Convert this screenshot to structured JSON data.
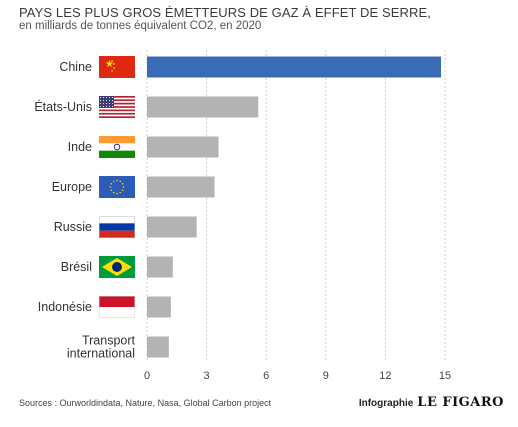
{
  "header": {
    "title": "PAYS LES PLUS GROS ÉMETTEURS DE GAZ À EFFET DE SERRE,",
    "subtitle": "en milliards de tonnes équivalent CO2, en 2020"
  },
  "footer": {
    "sources": "Sources : Ourworldindata, Nature, Nasa, Global Carbon project",
    "credit_label": "Infographie",
    "credit_brand": "LE FIGARO"
  },
  "colors": {
    "highlight": "#3a6bb5",
    "bar": "#b3b3b3",
    "grid": "#cfcfcf"
  },
  "chart_data": {
    "type": "bar",
    "orientation": "horizontal",
    "categories": [
      {
        "label": [
          "Chine"
        ],
        "flag": "china-flag"
      },
      {
        "label": [
          "États-Unis"
        ],
        "flag": "usa-flag"
      },
      {
        "label": [
          "Inde"
        ],
        "flag": "india-flag"
      },
      {
        "label": [
          "Europe"
        ],
        "flag": "eu-flag"
      },
      {
        "label": [
          "Russie"
        ],
        "flag": "russia-flag"
      },
      {
        "label": [
          "Brésil"
        ],
        "flag": "brazil-flag"
      },
      {
        "label": [
          "Indonésie"
        ],
        "flag": "indonesia-flag"
      },
      {
        "label": [
          "Transport",
          "international"
        ],
        "flag": null
      }
    ],
    "values": [
      14.8,
      5.6,
      3.6,
      3.4,
      2.5,
      1.3,
      1.2,
      1.1
    ],
    "highlight_index": 0,
    "xlim": [
      0,
      15
    ],
    "xticks": [
      0,
      3,
      6,
      9,
      12,
      15
    ],
    "grid": "vertical",
    "legend": "none"
  }
}
